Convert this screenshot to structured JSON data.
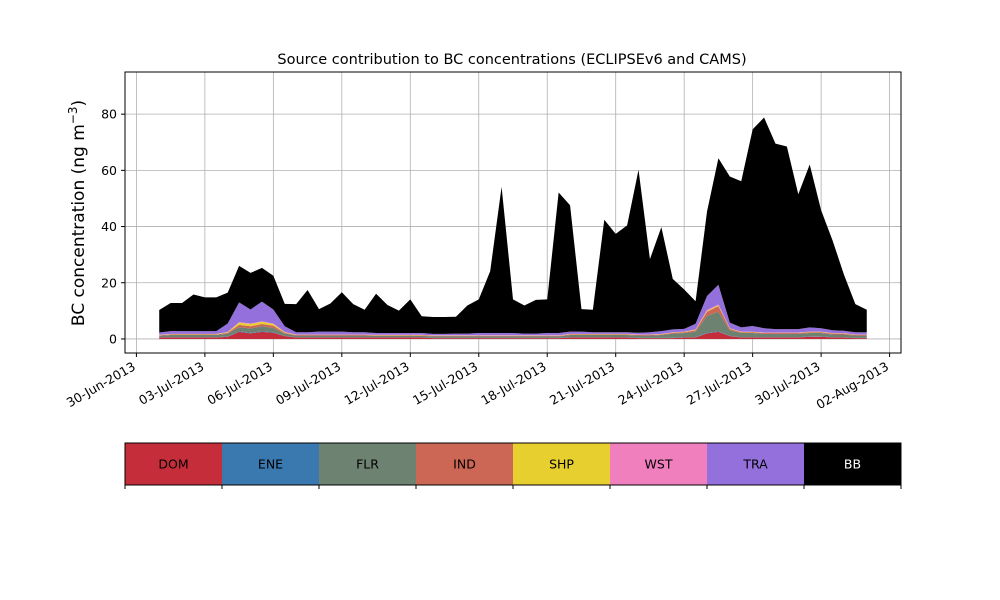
{
  "chart_data": {
    "type": "area",
    "stacked": true,
    "title": "Source contribution to BC concentrations (ECLIPSEv6 and CAMS)",
    "ylabel": "BC concentration (ng m",
    "ylabel_sup": "−3",
    "ylabel_close": ")",
    "xlabel": "",
    "grid": true,
    "xlim": [
      -0.5,
      33.5
    ],
    "ylim": [
      -5,
      95
    ],
    "yticks": [
      0,
      20,
      40,
      60,
      80
    ],
    "xticks": [
      {
        "x": 0,
        "label": "30-Jun-2013"
      },
      {
        "x": 3,
        "label": "03-Jul-2013"
      },
      {
        "x": 6,
        "label": "06-Jul-2013"
      },
      {
        "x": 9,
        "label": "09-Jul-2013"
      },
      {
        "x": 12,
        "label": "12-Jul-2013"
      },
      {
        "x": 15,
        "label": "15-Jul-2013"
      },
      {
        "x": 18,
        "label": "18-Jul-2013"
      },
      {
        "x": 21,
        "label": "21-Jul-2013"
      },
      {
        "x": 24,
        "label": "24-Jul-2013"
      },
      {
        "x": 27,
        "label": "27-Jul-2013"
      },
      {
        "x": 30,
        "label": "30-Jul-2013"
      },
      {
        "x": 33,
        "label": "02-Aug-2013"
      }
    ],
    "x_unit": "days since 30-Jun-2013",
    "x": [
      1,
      1.5,
      2,
      2.5,
      3,
      3.5,
      4,
      4.5,
      5,
      5.5,
      6,
      6.5,
      7,
      7.5,
      8,
      8.5,
      9,
      9.5,
      10,
      10.5,
      11,
      11.5,
      12,
      12.5,
      13,
      13.5,
      14,
      14.5,
      15,
      15.5,
      16,
      16.5,
      17,
      17.5,
      18,
      18.5,
      19,
      19.5,
      20,
      20.5,
      21,
      21.5,
      22,
      22.5,
      23,
      23.5,
      24,
      24.5,
      25,
      25.5,
      26,
      26.5,
      27,
      27.5,
      28,
      28.5,
      29,
      29.5,
      30,
      30.5,
      31,
      31.5,
      32
    ],
    "series": [
      {
        "name": "DOM",
        "color": "#c62d3a",
        "values": [
          0.5,
          0.5,
          0.5,
          0.5,
          0.5,
          0.5,
          0.8,
          2.5,
          2,
          2.5,
          2.2,
          1,
          0.5,
          0.5,
          0.5,
          0.5,
          0.5,
          0.5,
          0.5,
          0.5,
          0.5,
          0.5,
          0.5,
          0.5,
          0.3,
          0.3,
          0.3,
          0.3,
          0.3,
          0.3,
          0.3,
          0.3,
          0.3,
          0.3,
          0.3,
          0.3,
          0.5,
          0.5,
          0.5,
          0.5,
          0.5,
          0.5,
          0.3,
          0.3,
          0.3,
          0.3,
          0.5,
          0.5,
          2,
          2.5,
          1,
          0.5,
          0.5,
          0.5,
          0.5,
          0.5,
          0.5,
          0.8,
          0.8,
          0.5,
          0.5,
          0.3,
          0.3
        ]
      },
      {
        "name": "ENE",
        "color": "#3a78b0",
        "values": [
          0.1,
          0.1,
          0.1,
          0.1,
          0.1,
          0.1,
          0.1,
          0.2,
          0.2,
          0.2,
          0.2,
          0.1,
          0.1,
          0.1,
          0.1,
          0.1,
          0.1,
          0.1,
          0.1,
          0.1,
          0.1,
          0.1,
          0.1,
          0.1,
          0.1,
          0.1,
          0.1,
          0.1,
          0.1,
          0.1,
          0.1,
          0.1,
          0.1,
          0.1,
          0.1,
          0.1,
          0.1,
          0.1,
          0.1,
          0.1,
          0.1,
          0.1,
          0.1,
          0.1,
          0.1,
          0.1,
          0.1,
          0.1,
          0.2,
          0.2,
          0.1,
          0.1,
          0.1,
          0.1,
          0.1,
          0.1,
          0.1,
          0.1,
          0.1,
          0.1,
          0.1,
          0.1,
          0.1
        ]
      },
      {
        "name": "FLR",
        "color": "#6e8272",
        "values": [
          0.5,
          0.8,
          0.8,
          0.8,
          0.8,
          0.8,
          1,
          1.5,
          1.5,
          1.8,
          1.5,
          0.8,
          0.6,
          0.6,
          0.6,
          0.6,
          0.6,
          0.6,
          0.6,
          0.5,
          0.5,
          0.5,
          0.5,
          0.5,
          0.5,
          0.5,
          0.5,
          0.5,
          0.5,
          0.5,
          0.5,
          0.5,
          0.5,
          0.5,
          0.5,
          0.5,
          0.8,
          0.8,
          0.8,
          0.8,
          0.8,
          0.8,
          0.8,
          0.8,
          1,
          1.5,
          1.5,
          2,
          6,
          7,
          2,
          1.5,
          1.5,
          1.2,
          1.2,
          1.2,
          1.2,
          1.2,
          1.2,
          1,
          1,
          0.8,
          0.8
        ]
      },
      {
        "name": "IND",
        "color": "#cc6655",
        "values": [
          0.2,
          0.2,
          0.2,
          0.2,
          0.2,
          0.2,
          0.3,
          0.8,
          0.8,
          0.8,
          0.8,
          0.3,
          0.2,
          0.2,
          0.2,
          0.2,
          0.2,
          0.2,
          0.2,
          0.2,
          0.2,
          0.2,
          0.2,
          0.2,
          0.2,
          0.2,
          0.2,
          0.2,
          0.2,
          0.2,
          0.2,
          0.2,
          0.2,
          0.2,
          0.2,
          0.2,
          0.2,
          0.2,
          0.2,
          0.2,
          0.2,
          0.2,
          0.2,
          0.2,
          0.2,
          0.3,
          0.3,
          0.5,
          1.5,
          2,
          0.5,
          0.3,
          0.3,
          0.3,
          0.3,
          0.3,
          0.3,
          0.3,
          0.3,
          0.3,
          0.3,
          0.2,
          0.2
        ]
      },
      {
        "name": "SHP",
        "color": "#e6cf2e",
        "values": [
          0.1,
          0.1,
          0.1,
          0.1,
          0.1,
          0.1,
          0.2,
          0.8,
          0.8,
          0.8,
          0.6,
          0.2,
          0.1,
          0.1,
          0.1,
          0.1,
          0.1,
          0.1,
          0.1,
          0.1,
          0.1,
          0.1,
          0.1,
          0.1,
          0.1,
          0.1,
          0.1,
          0.1,
          0.1,
          0.1,
          0.1,
          0.1,
          0.1,
          0.1,
          0.1,
          0.1,
          0.1,
          0.1,
          0.1,
          0.1,
          0.1,
          0.1,
          0.1,
          0.1,
          0.1,
          0.1,
          0.1,
          0.2,
          0.3,
          0.3,
          0.1,
          0.1,
          0.1,
          0.1,
          0.1,
          0.1,
          0.1,
          0.1,
          0.1,
          0.1,
          0.1,
          0.1,
          0.1
        ]
      },
      {
        "name": "WST",
        "color": "#f07fbe",
        "values": [
          0.1,
          0.1,
          0.1,
          0.1,
          0.1,
          0.1,
          0.1,
          0.2,
          0.2,
          0.2,
          0.2,
          0.1,
          0.1,
          0.1,
          0.1,
          0.1,
          0.1,
          0.1,
          0.1,
          0.1,
          0.1,
          0.1,
          0.1,
          0.1,
          0.1,
          0.1,
          0.1,
          0.1,
          0.1,
          0.1,
          0.1,
          0.1,
          0.1,
          0.1,
          0.1,
          0.1,
          0.1,
          0.1,
          0.1,
          0.1,
          0.1,
          0.1,
          0.1,
          0.1,
          0.1,
          0.1,
          0.1,
          0.1,
          0.3,
          0.3,
          0.1,
          0.1,
          0.1,
          0.1,
          0.1,
          0.1,
          0.1,
          0.1,
          0.1,
          0.1,
          0.1,
          0.1,
          0.1
        ]
      },
      {
        "name": "TRA",
        "color": "#9370db",
        "values": [
          0.8,
          1,
          1,
          1,
          1,
          1,
          3,
          7,
          5,
          7,
          5,
          2,
          0.8,
          0.8,
          1,
          1,
          1,
          0.8,
          0.8,
          0.6,
          0.6,
          0.6,
          0.6,
          0.6,
          0.5,
          0.5,
          0.6,
          0.6,
          0.8,
          0.8,
          0.8,
          0.8,
          0.6,
          0.6,
          0.8,
          0.8,
          0.8,
          0.8,
          0.6,
          0.6,
          0.6,
          0.6,
          0.6,
          0.8,
          1,
          1,
          1,
          2,
          5,
          7,
          2,
          1.5,
          2,
          1.5,
          1.2,
          1.2,
          1.2,
          1.5,
          1.2,
          1,
          0.8,
          0.8,
          0.8
        ]
      },
      {
        "name": "BB",
        "color": "#000000",
        "values": [
          8,
          10,
          10,
          13,
          12,
          12,
          11,
          13,
          13,
          12,
          12,
          8,
          10,
          15,
          8,
          10,
          14,
          10,
          8,
          14,
          10,
          8,
          12,
          6,
          6,
          6,
          6,
          10,
          12,
          22,
          52,
          12,
          10,
          12,
          12,
          50,
          45,
          8,
          8,
          40,
          35,
          38,
          58,
          26,
          37,
          18,
          14,
          8,
          30,
          45,
          52,
          52,
          70,
          75,
          66,
          65,
          48,
          58,
          42,
          32,
          20,
          10,
          8
        ]
      }
    ],
    "legend": [
      "DOM",
      "ENE",
      "FLR",
      "IND",
      "SHP",
      "WST",
      "TRA",
      "BB"
    ],
    "legend_placement": "bottom colorbar"
  }
}
